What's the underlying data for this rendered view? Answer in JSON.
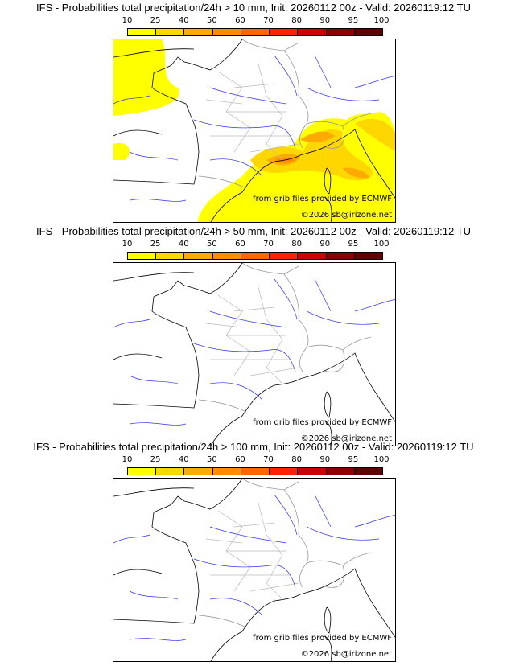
{
  "colorbar": {
    "labels": [
      "10",
      "25",
      "40",
      "50",
      "60",
      "70",
      "80",
      "90",
      "95",
      "100"
    ],
    "colors": [
      "#ffff00",
      "#ffd700",
      "#ffaa00",
      "#ff8c00",
      "#ff6600",
      "#ff2200",
      "#cc0000",
      "#8b0000",
      "#600000"
    ]
  },
  "panels": [
    {
      "title": "IFS - Probabilities total precipitation/24h > 10 mm, Init: 20260112 00z - Valid: 20260119:12 TU",
      "has_precip": true
    },
    {
      "title": "IFS - Probabilities total precipitation/24h > 50 mm, Init: 20260112 00z - Valid: 20260119:12 TU",
      "has_precip": false
    },
    {
      "title": "IFS - Probabilities total precipitation/24h > 100 mm, Init: 20260112 00z - Valid: 20260119:12 TU",
      "has_precip": false
    }
  ],
  "credits": {
    "source": "from grib files provided by ECMWF",
    "copyright": "©2026 sb@irizone.net"
  }
}
